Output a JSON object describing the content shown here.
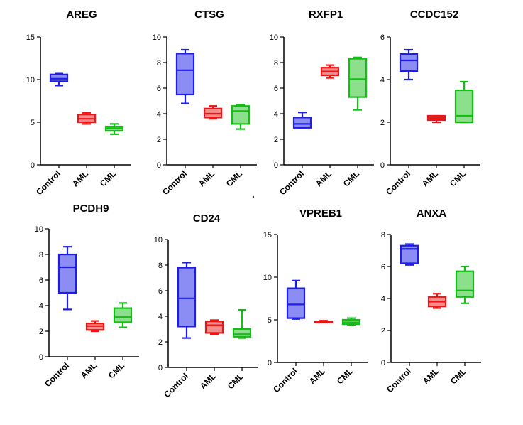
{
  "categories": [
    "Control",
    "AML",
    "CML"
  ],
  "colors": {
    "Control": {
      "stroke": "#1e1eeb",
      "fill": "#8c8cf5"
    },
    "AML": {
      "stroke": "#f01414",
      "fill": "#f58c8c"
    },
    "CML": {
      "stroke": "#14be14",
      "fill": "#8ce08c"
    }
  },
  "chart_data": [
    {
      "type": "box",
      "title": "AREG",
      "ylim": [
        0,
        15
      ],
      "yticks": [
        0,
        5,
        10,
        15
      ],
      "boxes": [
        {
          "category": "Control",
          "min": 9.3,
          "q1": 9.8,
          "median": 10.1,
          "q3": 10.6,
          "max": 10.7
        },
        {
          "category": "AML",
          "min": 4.8,
          "q1": 5.0,
          "median": 5.4,
          "q3": 5.9,
          "max": 6.1
        },
        {
          "category": "CML",
          "min": 3.6,
          "q1": 4.0,
          "median": 4.3,
          "q3": 4.5,
          "max": 4.8
        }
      ]
    },
    {
      "type": "box",
      "title": "CTSG",
      "ylim": [
        0,
        10
      ],
      "yticks": [
        0,
        2,
        4,
        6,
        8,
        10
      ],
      "boxes": [
        {
          "category": "Control",
          "min": 4.8,
          "q1": 5.5,
          "median": 7.4,
          "q3": 8.7,
          "max": 9.0
        },
        {
          "category": "AML",
          "min": 3.6,
          "q1": 3.7,
          "median": 4.0,
          "q3": 4.4,
          "max": 4.6
        },
        {
          "category": "CML",
          "min": 2.8,
          "q1": 3.2,
          "median": 4.2,
          "q3": 4.6,
          "max": 4.7
        }
      ]
    },
    {
      "type": "box",
      "title": "RXFP1",
      "ylim": [
        0,
        10
      ],
      "yticks": [
        0,
        2,
        4,
        6,
        8,
        10
      ],
      "boxes": [
        {
          "category": "Control",
          "min": 2.9,
          "q1": 2.9,
          "median": 3.2,
          "q3": 3.7,
          "max": 4.1
        },
        {
          "category": "AML",
          "min": 6.8,
          "q1": 7.0,
          "median": 7.3,
          "q3": 7.6,
          "max": 7.8
        },
        {
          "category": "CML",
          "min": 4.3,
          "q1": 5.3,
          "median": 6.7,
          "q3": 8.3,
          "max": 8.4
        }
      ]
    },
    {
      "type": "box",
      "title": "CCDC152",
      "ylim": [
        0,
        6
      ],
      "yticks": [
        0,
        2,
        4,
        6
      ],
      "boxes": [
        {
          "category": "Control",
          "min": 4.0,
          "q1": 4.4,
          "median": 4.9,
          "q3": 5.2,
          "max": 5.4
        },
        {
          "category": "AML",
          "min": 2.0,
          "q1": 2.1,
          "median": 2.2,
          "q3": 2.3,
          "max": 2.3
        },
        {
          "category": "CML",
          "min": 2.0,
          "q1": 2.0,
          "median": 2.3,
          "q3": 3.5,
          "max": 3.9
        }
      ]
    },
    {
      "type": "box",
      "title": "PCDH9",
      "ylim": [
        0,
        10
      ],
      "yticks": [
        0,
        2,
        4,
        6,
        8,
        10
      ],
      "boxes": [
        {
          "category": "Control",
          "min": 3.7,
          "q1": 5.0,
          "median": 7.0,
          "q3": 8.0,
          "max": 8.6
        },
        {
          "category": "AML",
          "min": 2.0,
          "q1": 2.1,
          "median": 2.4,
          "q3": 2.6,
          "max": 2.8
        },
        {
          "category": "CML",
          "min": 2.3,
          "q1": 2.7,
          "median": 3.1,
          "q3": 3.8,
          "max": 4.2
        }
      ]
    },
    {
      "type": "box",
      "title": "CD24",
      "ylim": [
        0,
        10
      ],
      "yticks": [
        0,
        2,
        4,
        6,
        8,
        10
      ],
      "boxes": [
        {
          "category": "Control",
          "min": 2.3,
          "q1": 3.2,
          "median": 5.4,
          "q3": 7.8,
          "max": 8.2
        },
        {
          "category": "AML",
          "min": 2.6,
          "q1": 2.7,
          "median": 3.3,
          "q3": 3.6,
          "max": 3.7
        },
        {
          "category": "CML",
          "min": 2.3,
          "q1": 2.4,
          "median": 2.6,
          "q3": 3.0,
          "max": 4.5
        }
      ]
    },
    {
      "type": "box",
      "title": "VPREB1",
      "ylim": [
        0,
        15
      ],
      "yticks": [
        0,
        5,
        10,
        15
      ],
      "boxes": [
        {
          "category": "Control",
          "min": 5.1,
          "q1": 5.2,
          "median": 6.8,
          "q3": 8.7,
          "max": 9.6
        },
        {
          "category": "AML",
          "min": 4.7,
          "q1": 4.7,
          "median": 4.8,
          "q3": 4.8,
          "max": 4.9
        },
        {
          "category": "CML",
          "min": 4.4,
          "q1": 4.5,
          "median": 4.7,
          "q3": 5.0,
          "max": 5.2
        }
      ]
    },
    {
      "type": "box",
      "title": "ANXA",
      "ylim": [
        0,
        8
      ],
      "yticks": [
        0,
        2,
        4,
        6,
        8
      ],
      "boxes": [
        {
          "category": "Control",
          "min": 6.1,
          "q1": 6.2,
          "median": 7.1,
          "q3": 7.3,
          "max": 7.4
        },
        {
          "category": "AML",
          "min": 3.4,
          "q1": 3.5,
          "median": 3.8,
          "q3": 4.1,
          "max": 4.3
        },
        {
          "category": "CML",
          "min": 3.7,
          "q1": 4.1,
          "median": 4.5,
          "q3": 5.7,
          "max": 6.0
        }
      ]
    }
  ]
}
